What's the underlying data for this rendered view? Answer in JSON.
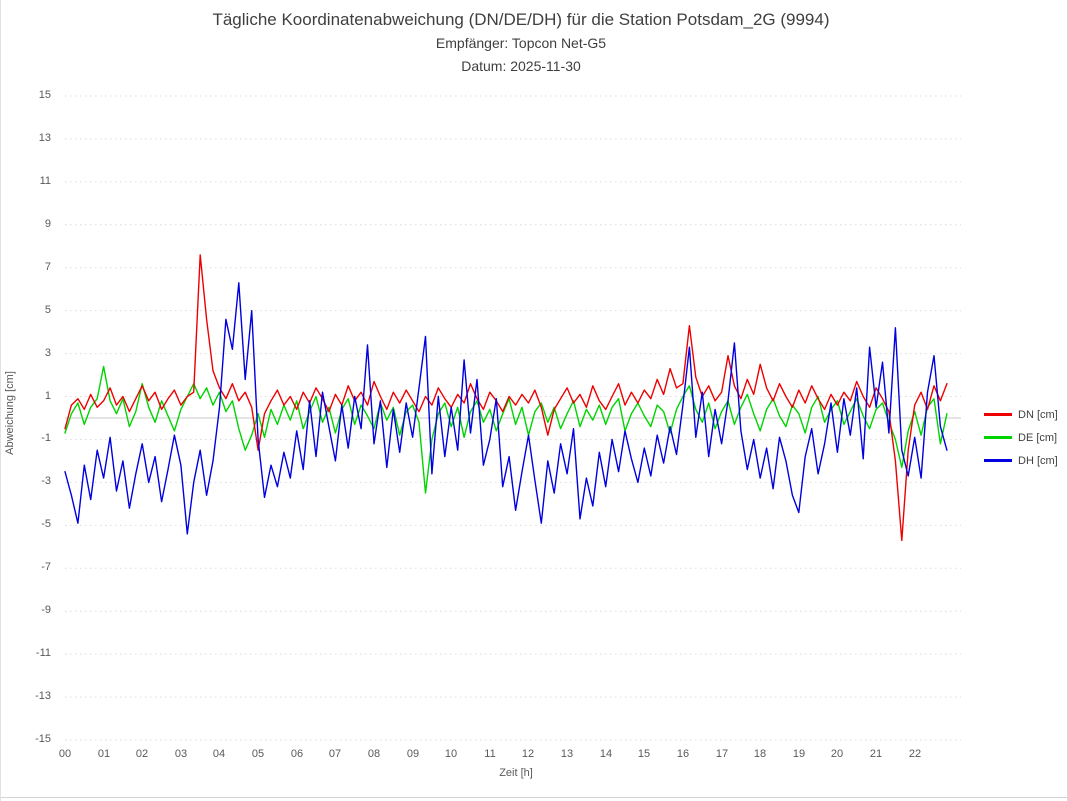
{
  "header": {
    "title": "Tägliche Koordinatenabweichung (DN/DE/DH) für die Station Potsdam_2G (9994)",
    "subtitle_receiver": "Empfänger: Topcon Net-G5",
    "subtitle_date": "Datum: 2025-11-30"
  },
  "chart_data": {
    "type": "line",
    "title": "Tägliche Koordinatenabweichung (DN/DE/DH) für die Station Potsdam_2G (9994)",
    "subtitle_receiver": "Empfänger: Topcon Net-G5",
    "subtitle_date": "Datum: 2025-11-30",
    "xlabel": "Zeit [h]",
    "ylabel": "Abweichung [cm]",
    "xlim": [
      0,
      23.2
    ],
    "ylim": [
      -15,
      15
    ],
    "xtick_labels": [
      "00",
      "01",
      "02",
      "03",
      "04",
      "05",
      "06",
      "07",
      "08",
      "09",
      "10",
      "11",
      "12",
      "13",
      "14",
      "15",
      "16",
      "17",
      "18",
      "19",
      "20",
      "21",
      "22"
    ],
    "xtick_hours": [
      0,
      1,
      2,
      3,
      4,
      5,
      6,
      7,
      8,
      9,
      10,
      11,
      12,
      13,
      14,
      15,
      16,
      17,
      18,
      19,
      20,
      21,
      22
    ],
    "ytick_values": [
      15,
      13,
      11,
      9,
      7,
      5,
      3,
      1,
      -1,
      -3,
      -5,
      -7,
      -9,
      -11,
      -13,
      -15
    ],
    "grid": "horizontal dotted gridlines at odd values, solid gray line at 0, no vertical gridlines",
    "legend_position": "right-center",
    "colors": {
      "grid": "#dcdcdc",
      "zero_line": "#c8c8c8",
      "text": "#595959",
      "title": "#3f3f3f"
    },
    "sample_interval_hours": 0.16667,
    "x_start_hour": 0,
    "series": [
      {
        "name": "DN [cm]",
        "color": "#ee0000",
        "values": [
          -0.5,
          0.6,
          0.9,
          0.4,
          1.1,
          0.5,
          0.8,
          1.4,
          0.6,
          1.0,
          0.3,
          0.9,
          1.5,
          0.8,
          1.2,
          0.4,
          0.9,
          1.3,
          0.6,
          1.0,
          1.2,
          7.6,
          4.6,
          2.2,
          1.4,
          0.9,
          1.6,
          0.8,
          1.2,
          0.5,
          -1.5,
          0.2,
          0.8,
          1.3,
          0.6,
          1.0,
          0.4,
          1.2,
          0.7,
          1.4,
          0.9,
          0.3,
          1.1,
          0.6,
          1.5,
          0.8,
          1.2,
          0.6,
          1.7,
          1.0,
          0.4,
          1.2,
          0.7,
          1.3,
          0.8,
          0.3,
          1.0,
          0.6,
          1.4,
          0.9,
          0.5,
          1.1,
          0.7,
          1.6,
          0.9,
          0.4,
          1.2,
          0.8,
          0.3,
          1.0,
          0.6,
          1.1,
          0.7,
          1.3,
          0.5,
          -0.8,
          0.4,
          0.9,
          1.4,
          0.7,
          1.1,
          0.5,
          1.5,
          0.8,
          0.4,
          1.0,
          1.6,
          0.6,
          1.2,
          0.7,
          1.3,
          0.9,
          1.8,
          1.1,
          2.3,
          1.4,
          1.6,
          4.3,
          1.9,
          1.0,
          1.5,
          0.8,
          1.2,
          2.9,
          1.5,
          0.9,
          1.8,
          1.1,
          2.5,
          1.4,
          0.8,
          1.6,
          1.0,
          0.5,
          1.3,
          0.7,
          1.5,
          0.9,
          0.4,
          1.1,
          0.6,
          1.2,
          0.8,
          1.7,
          1.0,
          0.5,
          1.4,
          0.9,
          0.3,
          -2.0,
          -5.7,
          -1.5,
          0.6,
          1.2,
          0.4,
          1.5,
          0.8,
          1.6
        ]
      },
      {
        "name": "DE [cm]",
        "color": "#00d400",
        "values": [
          -0.7,
          0.2,
          0.7,
          -0.3,
          0.5,
          0.9,
          2.4,
          0.8,
          0.2,
          0.9,
          -0.4,
          0.3,
          1.6,
          0.5,
          -0.2,
          0.8,
          0.1,
          -0.6,
          0.4,
          1.0,
          1.6,
          0.9,
          1.4,
          0.6,
          1.2,
          0.3,
          0.8,
          -0.5,
          -1.5,
          -0.8,
          0.2,
          -0.9,
          0.4,
          -0.3,
          0.6,
          -0.1,
          0.8,
          -0.5,
          0.3,
          1.0,
          -0.2,
          0.5,
          -0.7,
          0.4,
          0.9,
          -0.3,
          0.6,
          0.1,
          -0.5,
          0.7,
          -0.1,
          0.5,
          -0.8,
          0.3,
          0.6,
          -0.2,
          -3.5,
          -1.0,
          0.2,
          0.7,
          -0.4,
          0.5,
          -0.9,
          0.3,
          0.8,
          -0.2,
          0.4,
          -0.6,
          0.2,
          0.9,
          -0.3,
          0.5,
          -0.8,
          0.3,
          0.7,
          -0.2,
          0.5,
          -0.5,
          0.2,
          0.8,
          -0.4,
          0.4,
          -0.1,
          0.6,
          -0.3,
          0.5,
          0.9,
          -0.6,
          0.2,
          0.7,
          0.1,
          -0.4,
          0.6,
          0.3,
          -0.7,
          0.4,
          1.0,
          1.5,
          0.4,
          -0.2,
          0.7,
          -0.5,
          0.3,
          0.8,
          -0.3,
          0.5,
          1.1,
          0.2,
          -0.6,
          0.4,
          0.9,
          0.1,
          -0.4,
          0.6,
          0.2,
          -0.7,
          0.5,
          1.0,
          -0.2,
          0.4,
          0.8,
          -0.3,
          0.3,
          0.9,
          0.1,
          -0.5,
          0.4,
          0.7,
          -0.2,
          -1.0,
          -2.3,
          -0.6,
          0.3,
          -0.8,
          0.5,
          0.9,
          -1.2,
          0.2
        ]
      },
      {
        "name": "DH [cm]",
        "color": "#0000e0",
        "values": [
          -2.5,
          -3.6,
          -4.9,
          -2.2,
          -3.8,
          -1.5,
          -2.8,
          -0.9,
          -3.4,
          -2.0,
          -4.2,
          -2.6,
          -1.2,
          -3.0,
          -1.8,
          -3.9,
          -2.4,
          -0.8,
          -2.2,
          -5.4,
          -3.0,
          -1.5,
          -3.6,
          -2.0,
          0.5,
          4.6,
          3.2,
          6.3,
          1.8,
          5.0,
          -1.0,
          -3.7,
          -2.2,
          -3.2,
          -1.6,
          -2.8,
          -0.6,
          -2.4,
          0.8,
          -1.8,
          1.2,
          -0.4,
          -2.0,
          0.6,
          -1.4,
          1.0,
          -0.5,
          3.4,
          -1.2,
          0.8,
          -2.3,
          0.4,
          -1.6,
          0.7,
          -0.9,
          1.4,
          3.8,
          -2.6,
          1.0,
          -1.8,
          0.5,
          -1.5,
          2.7,
          -0.7,
          1.8,
          -2.2,
          -1.0,
          0.9,
          -3.2,
          -1.8,
          -4.3,
          -2.5,
          -0.8,
          -2.9,
          -4.9,
          -2.0,
          -3.5,
          -1.2,
          -2.6,
          -0.5,
          -4.7,
          -2.8,
          -4.1,
          -1.6,
          -3.2,
          -1.0,
          -2.5,
          -0.6,
          -1.9,
          -3.0,
          -1.4,
          -2.7,
          -0.8,
          -2.1,
          -0.4,
          -1.7,
          0.6,
          3.3,
          -0.9,
          1.2,
          -1.8,
          0.4,
          -1.2,
          0.8,
          3.5,
          -0.6,
          -2.4,
          -1.0,
          -2.8,
          -1.4,
          -3.3,
          -0.9,
          -2.0,
          -3.6,
          -4.4,
          -1.8,
          -0.5,
          -2.6,
          -1.2,
          0.7,
          -1.6,
          0.9,
          -0.8,
          1.4,
          -1.9,
          3.3,
          0.5,
          2.6,
          -0.7,
          4.2,
          -1.5,
          -2.7,
          -0.9,
          -2.8,
          1.2,
          2.9,
          -0.4,
          -1.5
        ]
      }
    ]
  }
}
